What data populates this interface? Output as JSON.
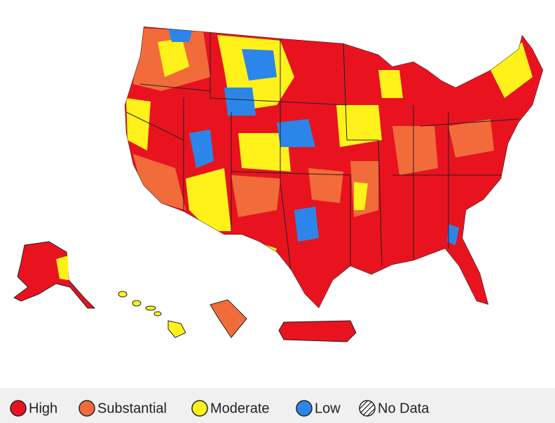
{
  "legend": {
    "items": [
      {
        "label": "High",
        "color": "#e8131f"
      },
      {
        "label": "Substantial",
        "color": "#f26c3b"
      },
      {
        "label": "Moderate",
        "color": "#fff21a"
      },
      {
        "label": "Low",
        "color": "#2c86e9"
      },
      {
        "label": "No Data",
        "pattern": "hatch"
      }
    ]
  }
}
